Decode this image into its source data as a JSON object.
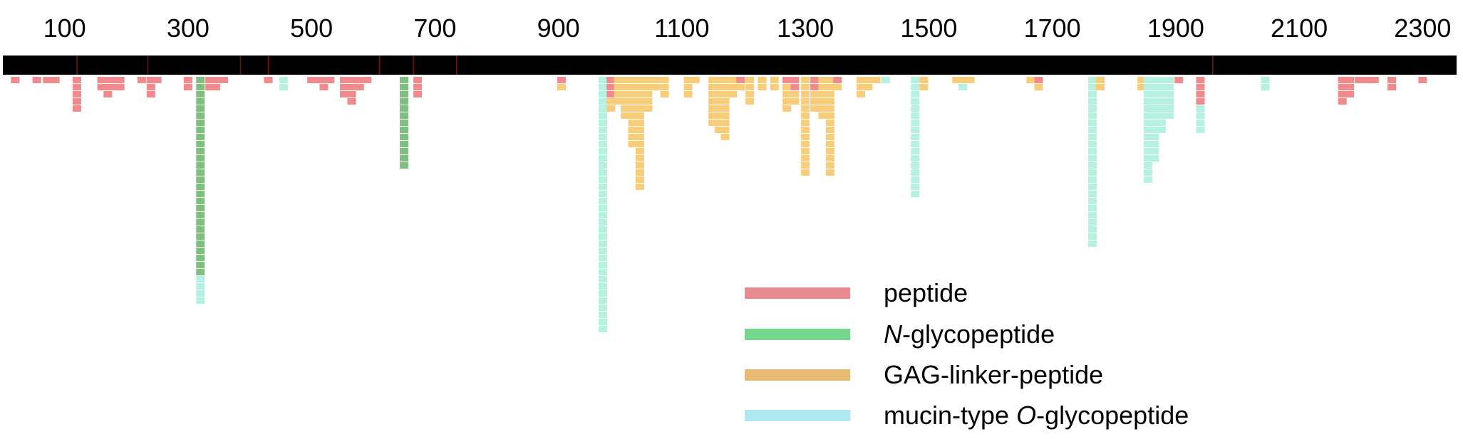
{
  "chart_data": {
    "type": "sequence-coverage",
    "title": "",
    "xlabel": "",
    "ylabel": "",
    "xlim": [
      0,
      2355
    ],
    "ticks": [
      100,
      300,
      500,
      700,
      900,
      1100,
      1300,
      1500,
      1700,
      1900,
      2100,
      2300
    ],
    "tick_labels": [
      "100",
      "300",
      "500",
      "700",
      "900",
      "1100",
      "1300",
      "1500",
      "1700",
      "1900",
      "2100",
      "2300"
    ],
    "domain_boundaries": [
      120,
      235,
      385,
      430,
      610,
      665,
      735,
      1960
    ],
    "legend_position": "bottom-right",
    "legend": [
      {
        "key": "peptide",
        "label": "peptide",
        "color": "#e88b8e"
      },
      {
        "key": "n_glyco",
        "label": "-glycopeptide",
        "italic_prefix": "N",
        "color": "#74d78b"
      },
      {
        "key": "gag",
        "label": "GAG-linker-peptide",
        "color": "#e6bb71"
      },
      {
        "key": "mucin",
        "label": "mucin-type ",
        "italic_mid": "O",
        "suffix": "-glycopeptide",
        "color": "#aee9f0"
      }
    ],
    "track_colors": {
      "peptide": "#f08a8d",
      "n_glyco": "#7fbf7f",
      "n_glyco_light": "#b2f0e4",
      "gag": "#f8cd7a",
      "mucin": "#b5f1e0"
    },
    "columns": [
      {
        "pos": 20,
        "stack": [
          [
            "peptide",
            1
          ]
        ]
      },
      {
        "pos": 55,
        "stack": [
          [
            "peptide",
            1
          ]
        ]
      },
      {
        "pos": 72,
        "stack": [
          [
            "peptide",
            1
          ]
        ]
      },
      {
        "pos": 85,
        "stack": [
          [
            "peptide",
            1
          ]
        ]
      },
      {
        "pos": 120,
        "stack": [
          [
            "peptide",
            5
          ]
        ]
      },
      {
        "pos": 160,
        "stack": [
          [
            "peptide",
            2
          ]
        ]
      },
      {
        "pos": 170,
        "stack": [
          [
            "peptide",
            3
          ]
        ]
      },
      {
        "pos": 180,
        "stack": [
          [
            "peptide",
            2
          ]
        ]
      },
      {
        "pos": 190,
        "stack": [
          [
            "peptide",
            2
          ]
        ]
      },
      {
        "pos": 225,
        "stack": [
          [
            "peptide",
            1
          ]
        ]
      },
      {
        "pos": 240,
        "stack": [
          [
            "peptide",
            3
          ]
        ]
      },
      {
        "pos": 250,
        "stack": [
          [
            "peptide",
            1
          ]
        ]
      },
      {
        "pos": 300,
        "stack": [
          [
            "peptide",
            2
          ]
        ]
      },
      {
        "pos": 320,
        "stack": [
          [
            "n_glyco",
            28
          ],
          [
            "n_glyco_light",
            4
          ]
        ]
      },
      {
        "pos": 335,
        "stack": [
          [
            "peptide",
            2
          ]
        ]
      },
      {
        "pos": 345,
        "stack": [
          [
            "peptide",
            2
          ]
        ]
      },
      {
        "pos": 358,
        "stack": [
          [
            "peptide",
            1
          ]
        ]
      },
      {
        "pos": 430,
        "stack": [
          [
            "peptide",
            1
          ]
        ]
      },
      {
        "pos": 455,
        "stack": [
          [
            "mucin",
            2
          ]
        ]
      },
      {
        "pos": 500,
        "stack": [
          [
            "peptide",
            1
          ]
        ]
      },
      {
        "pos": 510,
        "stack": [
          [
            "peptide",
            1
          ]
        ]
      },
      {
        "pos": 520,
        "stack": [
          [
            "peptide",
            2
          ]
        ]
      },
      {
        "pos": 530,
        "stack": [
          [
            "peptide",
            1
          ]
        ]
      },
      {
        "pos": 553,
        "stack": [
          [
            "peptide",
            3
          ]
        ]
      },
      {
        "pos": 565,
        "stack": [
          [
            "peptide",
            4
          ]
        ]
      },
      {
        "pos": 578,
        "stack": [
          [
            "peptide",
            2
          ]
        ]
      },
      {
        "pos": 590,
        "stack": [
          [
            "peptide",
            1
          ]
        ]
      },
      {
        "pos": 650,
        "stack": [
          [
            "n_glyco",
            13
          ]
        ]
      },
      {
        "pos": 672,
        "stack": [
          [
            "peptide",
            3
          ]
        ]
      },
      {
        "pos": 905,
        "stack": [
          [
            "peptide",
            1
          ],
          [
            "gag",
            1
          ]
        ]
      },
      {
        "pos": 972,
        "stack": [
          [
            "mucin",
            36
          ]
        ]
      },
      {
        "pos": 985,
        "stack": [
          [
            "peptide",
            3
          ],
          [
            "gag",
            2
          ]
        ]
      },
      {
        "pos": 997,
        "stack": [
          [
            "gag",
            4
          ]
        ]
      },
      {
        "pos": 1008,
        "stack": [
          [
            "gag",
            6
          ]
        ]
      },
      {
        "pos": 1020,
        "stack": [
          [
            "gag",
            10
          ]
        ]
      },
      {
        "pos": 1032,
        "stack": [
          [
            "gag",
            16
          ]
        ]
      },
      {
        "pos": 1045,
        "stack": [
          [
            "gag",
            5
          ]
        ]
      },
      {
        "pos": 1058,
        "stack": [
          [
            "gag",
            2
          ]
        ]
      },
      {
        "pos": 1072,
        "stack": [
          [
            "gag",
            3
          ]
        ]
      },
      {
        "pos": 1110,
        "stack": [
          [
            "gag",
            3
          ]
        ]
      },
      {
        "pos": 1122,
        "stack": [
          [
            "gag",
            1
          ]
        ]
      },
      {
        "pos": 1150,
        "stack": [
          [
            "gag",
            7
          ]
        ]
      },
      {
        "pos": 1160,
        "stack": [
          [
            "gag",
            8
          ]
        ]
      },
      {
        "pos": 1170,
        "stack": [
          [
            "gag",
            9
          ]
        ]
      },
      {
        "pos": 1182,
        "stack": [
          [
            "gag",
            3
          ]
        ]
      },
      {
        "pos": 1195,
        "stack": [
          [
            "peptide",
            1
          ],
          [
            "gag",
            1
          ]
        ]
      },
      {
        "pos": 1210,
        "stack": [
          [
            "gag",
            4
          ]
        ]
      },
      {
        "pos": 1230,
        "stack": [
          [
            "gag",
            2
          ]
        ]
      },
      {
        "pos": 1250,
        "stack": [
          [
            "gag",
            2
          ]
        ]
      },
      {
        "pos": 1270,
        "stack": [
          [
            "peptide",
            1
          ],
          [
            "gag",
            4
          ]
        ]
      },
      {
        "pos": 1283,
        "stack": [
          [
            "peptide",
            2
          ],
          [
            "gag",
            2
          ]
        ]
      },
      {
        "pos": 1300,
        "stack": [
          [
            "gag",
            14
          ]
        ]
      },
      {
        "pos": 1315,
        "stack": [
          [
            "peptide",
            2
          ],
          [
            "gag",
            3
          ]
        ]
      },
      {
        "pos": 1328,
        "stack": [
          [
            "gag",
            6
          ]
        ]
      },
      {
        "pos": 1340,
        "stack": [
          [
            "gag",
            14
          ]
        ]
      },
      {
        "pos": 1352,
        "stack": [
          [
            "peptide",
            1
          ],
          [
            "gag",
            1
          ]
        ]
      },
      {
        "pos": 1390,
        "stack": [
          [
            "gag",
            3
          ]
        ]
      },
      {
        "pos": 1402,
        "stack": [
          [
            "gag",
            2
          ]
        ]
      },
      {
        "pos": 1415,
        "stack": [
          [
            "gag",
            1
          ]
        ]
      },
      {
        "pos": 1430,
        "stack": [
          [
            "mucin",
            1
          ]
        ]
      },
      {
        "pos": 1478,
        "stack": [
          [
            "mucin",
            17
          ]
        ]
      },
      {
        "pos": 1492,
        "stack": [
          [
            "gag",
            2
          ]
        ]
      },
      {
        "pos": 1545,
        "stack": [
          [
            "gag",
            1
          ]
        ]
      },
      {
        "pos": 1555,
        "stack": [
          [
            "gag",
            1
          ],
          [
            "mucin",
            1
          ]
        ]
      },
      {
        "pos": 1567,
        "stack": [
          [
            "gag",
            1
          ]
        ]
      },
      {
        "pos": 1665,
        "stack": [
          [
            "gag",
            1
          ]
        ]
      },
      {
        "pos": 1678,
        "stack": [
          [
            "peptide",
            1
          ],
          [
            "gag",
            1
          ]
        ]
      },
      {
        "pos": 1765,
        "stack": [
          [
            "mucin",
            24
          ]
        ]
      },
      {
        "pos": 1778,
        "stack": [
          [
            "gag",
            2
          ]
        ]
      },
      {
        "pos": 1845,
        "stack": [
          [
            "gag",
            2
          ]
        ]
      },
      {
        "pos": 1855,
        "stack": [
          [
            "mucin",
            15
          ]
        ]
      },
      {
        "pos": 1866,
        "stack": [
          [
            "mucin",
            12
          ]
        ]
      },
      {
        "pos": 1877,
        "stack": [
          [
            "mucin",
            8
          ]
        ]
      },
      {
        "pos": 1890,
        "stack": [
          [
            "mucin",
            6
          ]
        ]
      },
      {
        "pos": 1905,
        "stack": [
          [
            "peptide",
            1
          ]
        ]
      },
      {
        "pos": 1940,
        "stack": [
          [
            "peptide",
            4
          ],
          [
            "mucin",
            4
          ]
        ]
      },
      {
        "pos": 2045,
        "stack": [
          [
            "mucin",
            2
          ]
        ]
      },
      {
        "pos": 2170,
        "stack": [
          [
            "peptide",
            4
          ]
        ]
      },
      {
        "pos": 2182,
        "stack": [
          [
            "peptide",
            3
          ]
        ]
      },
      {
        "pos": 2197,
        "stack": [
          [
            "peptide",
            1
          ]
        ]
      },
      {
        "pos": 2210,
        "stack": [
          [
            "peptide",
            1
          ]
        ]
      },
      {
        "pos": 2222,
        "stack": [
          [
            "peptide",
            1
          ]
        ]
      },
      {
        "pos": 2250,
        "stack": [
          [
            "peptide",
            2
          ]
        ]
      },
      {
        "pos": 2300,
        "stack": [
          [
            "peptide",
            1
          ]
        ]
      }
    ]
  }
}
